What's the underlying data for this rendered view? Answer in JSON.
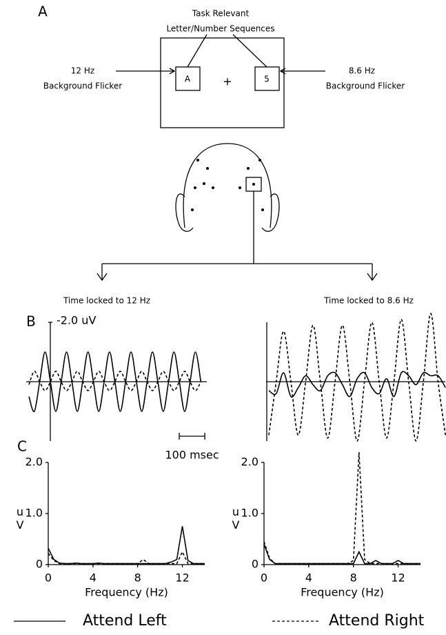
{
  "panels": {
    "a": "A",
    "b": "B",
    "c": "C"
  },
  "stimulus": {
    "task_line1": "Task Relevant",
    "task_line2": "Letter/Number Sequences",
    "left_freq": "12 Hz",
    "left_desc": "Background Flicker",
    "right_freq": "8.6 Hz",
    "right_desc": "Background Flicker",
    "left_letter": "A",
    "right_letter": "5",
    "fixation": "+"
  },
  "legend": [
    {
      "label": "Attend Left",
      "color": "#000000",
      "dash": false
    },
    {
      "label": "Attend Right",
      "color": "#000000",
      "dash": true
    }
  ],
  "chart_data": [
    {
      "type": "line",
      "title": "Time locked to 12 Hz",
      "x": [
        0,
        21,
        42,
        63,
        84,
        105,
        126,
        147,
        168,
        189,
        210,
        231,
        252,
        273,
        294,
        315,
        336,
        357,
        378,
        399,
        420,
        441,
        462,
        483,
        504,
        525,
        546,
        567,
        588,
        609,
        630,
        651,
        672
      ],
      "xlim": [
        0,
        690
      ],
      "ylim": [
        2.0,
        -2.0
      ],
      "yticks": [
        {
          "value": -2.0,
          "label": "-2.0 uV"
        }
      ],
      "scale_bar": {
        "value": 100,
        "label": "100 msec"
      },
      "series": [
        {
          "color": "#000000",
          "dash": false,
          "values": [
            0.5,
            1.0,
            0,
            -1.0,
            0,
            1.0,
            0,
            -1.0,
            0,
            1.0,
            0,
            -1.0,
            0,
            1.0,
            0,
            -1.0,
            0,
            1.0,
            0,
            -1.0,
            0,
            1.0,
            0,
            -1.0,
            0,
            1.0,
            0,
            -1.0,
            0,
            1.0,
            0,
            -1.0,
            0
          ]
        },
        {
          "color": "#000000",
          "dash": true,
          "values": [
            0.1,
            -0.35,
            0,
            0.3,
            0,
            -0.35,
            0,
            0.3,
            0,
            -0.35,
            0,
            0.3,
            0,
            -0.35,
            0,
            0.3,
            0,
            -0.35,
            0,
            0.3,
            0,
            -0.35,
            0,
            0.3,
            0,
            -0.35,
            0,
            0.3,
            0,
            -0.35,
            0,
            0.3,
            0
          ]
        }
      ]
    },
    {
      "type": "line",
      "title": "Time locked to 8.6 Hz",
      "x": [
        0,
        29,
        58,
        87,
        116,
        145,
        174,
        203,
        232,
        261,
        290,
        319,
        348,
        377,
        406,
        435,
        464,
        493,
        522,
        551,
        580,
        609,
        638,
        667,
        696
      ],
      "xlim": [
        0,
        690
      ],
      "ylim": [
        2.0,
        -2.0
      ],
      "series": [
        {
          "color": "#000000",
          "dash": false,
          "values": [
            0.3,
            0.4,
            -0.3,
            0.5,
            0.2,
            -0.2,
            0.1,
            0.3,
            -0.2,
            -0.3,
            0.1,
            0.5,
            -0.1,
            -0.3,
            0.2,
            0.4,
            -0.1,
            0.5,
            -0.3,
            -0.2,
            0.1,
            -0.3,
            -0.2,
            -0.2,
            0.2
          ]
        },
        {
          "color": "#000000",
          "dash": true,
          "values": [
            1.8,
            0,
            -1.7,
            0,
            1.8,
            0,
            -1.9,
            0,
            1.9,
            0,
            -1.9,
            0,
            2.0,
            0,
            -2.0,
            0,
            1.9,
            0,
            -2.1,
            0,
            2.0,
            0,
            -2.3,
            0,
            1.8
          ]
        }
      ]
    },
    {
      "type": "line",
      "x_label": "Frequency (Hz)",
      "y_label": "uV",
      "x": [
        0,
        0.5,
        1,
        1.5,
        2,
        2.5,
        3,
        3.5,
        4,
        4.5,
        5,
        5.5,
        6,
        6.5,
        7,
        7.5,
        8,
        8.5,
        9,
        9.5,
        10,
        10.5,
        11,
        11.5,
        12,
        12.5,
        13,
        13.5,
        14
      ],
      "xlim": [
        0,
        14
      ],
      "ylim": [
        0,
        2.0
      ],
      "xticks": [
        0,
        4,
        8,
        12
      ],
      "yticks": [
        0,
        {
          "value": 1.0,
          "label": "1.0"
        },
        {
          "value": 2.0,
          "label": "2.0"
        }
      ],
      "series": [
        {
          "color": "#000000",
          "dash": false,
          "values": [
            0.32,
            0.1,
            0.03,
            0.02,
            0.02,
            0.03,
            0.02,
            0.02,
            0.02,
            0.03,
            0.02,
            0.02,
            0.02,
            0.02,
            0.02,
            0.02,
            0.02,
            0.02,
            0.02,
            0.02,
            0.02,
            0.02,
            0.05,
            0.1,
            0.75,
            0.08,
            0.02,
            0.02,
            0.02
          ]
        },
        {
          "color": "#000000",
          "dash": true,
          "values": [
            0.22,
            0.08,
            0.02,
            0.02,
            0.02,
            0.02,
            0.02,
            0.02,
            0.02,
            0.02,
            0.02,
            0.02,
            0.02,
            0.02,
            0.02,
            0.02,
            0.02,
            0.1,
            0.02,
            0.02,
            0.02,
            0.02,
            0.02,
            0.02,
            0.25,
            0.02,
            0.02,
            0.02,
            0.02
          ]
        }
      ]
    },
    {
      "type": "line",
      "x_label": "Frequency (Hz)",
      "y_label": "uV",
      "x": [
        0,
        0.5,
        1,
        1.5,
        2,
        2.5,
        3,
        3.5,
        4,
        4.5,
        5,
        5.5,
        6,
        6.5,
        7,
        7.5,
        8,
        8.5,
        9,
        9.5,
        10,
        10.5,
        11,
        11.5,
        12,
        12.5,
        13,
        13.5,
        14
      ],
      "xlim": [
        0,
        14
      ],
      "ylim": [
        0,
        2.0
      ],
      "xticks": [
        0,
        4,
        8,
        12
      ],
      "yticks": [
        0,
        {
          "value": 1.0,
          "label": "1.0"
        },
        {
          "value": 2.0,
          "label": "2.0"
        }
      ],
      "series": [
        {
          "color": "#000000",
          "dash": false,
          "values": [
            0.4,
            0.1,
            0.02,
            0.02,
            0.02,
            0.02,
            0.02,
            0.02,
            0.02,
            0.02,
            0.02,
            0.02,
            0.02,
            0.02,
            0.02,
            0.02,
            0.02,
            0.25,
            0.02,
            0.02,
            0.08,
            0.02,
            0.02,
            0.02,
            0.08,
            0.02,
            0.02,
            0.02,
            0.02
          ]
        },
        {
          "color": "#000000",
          "dash": true,
          "values": [
            0.45,
            0.12,
            0.02,
            0.02,
            0.02,
            0.02,
            0.02,
            0.02,
            0.02,
            0.02,
            0.02,
            0.02,
            0.02,
            0.02,
            0.02,
            0.02,
            0.08,
            2.2,
            0.1,
            0.02,
            0.02,
            0.02,
            0.02,
            0.02,
            0.02,
            0.02,
            0.02,
            0.02,
            0.02
          ]
        }
      ]
    }
  ]
}
